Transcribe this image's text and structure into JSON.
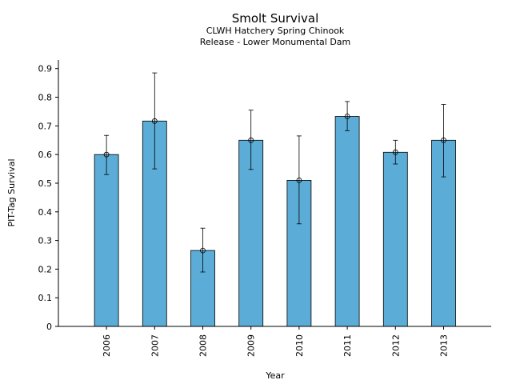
{
  "chart_data": {
    "type": "bar",
    "title": "Smolt Survival",
    "subtitle_lines": [
      "CLWH Hatchery Spring Chinook",
      "Release - Lower Monumental Dam"
    ],
    "xlabel": "Year",
    "ylabel": "PIT-Tag Survival",
    "categories": [
      "2006",
      "2007",
      "2008",
      "2009",
      "2010",
      "2011",
      "2012",
      "2013"
    ],
    "values": [
      0.6,
      0.717,
      0.265,
      0.65,
      0.51,
      0.733,
      0.608,
      0.65
    ],
    "err_low": [
      0.53,
      0.55,
      0.19,
      0.548,
      0.358,
      0.683,
      0.567,
      0.522
    ],
    "err_high": [
      0.667,
      0.885,
      0.343,
      0.755,
      0.665,
      0.785,
      0.65,
      0.775
    ],
    "ylim": [
      0,
      0.93
    ],
    "yticks": [
      "0",
      "0.1",
      "0.2",
      "0.3",
      "0.4",
      "0.5",
      "0.6",
      "0.7",
      "0.8",
      "0.9"
    ],
    "bar_color": "#5bacd6",
    "grid": false
  }
}
